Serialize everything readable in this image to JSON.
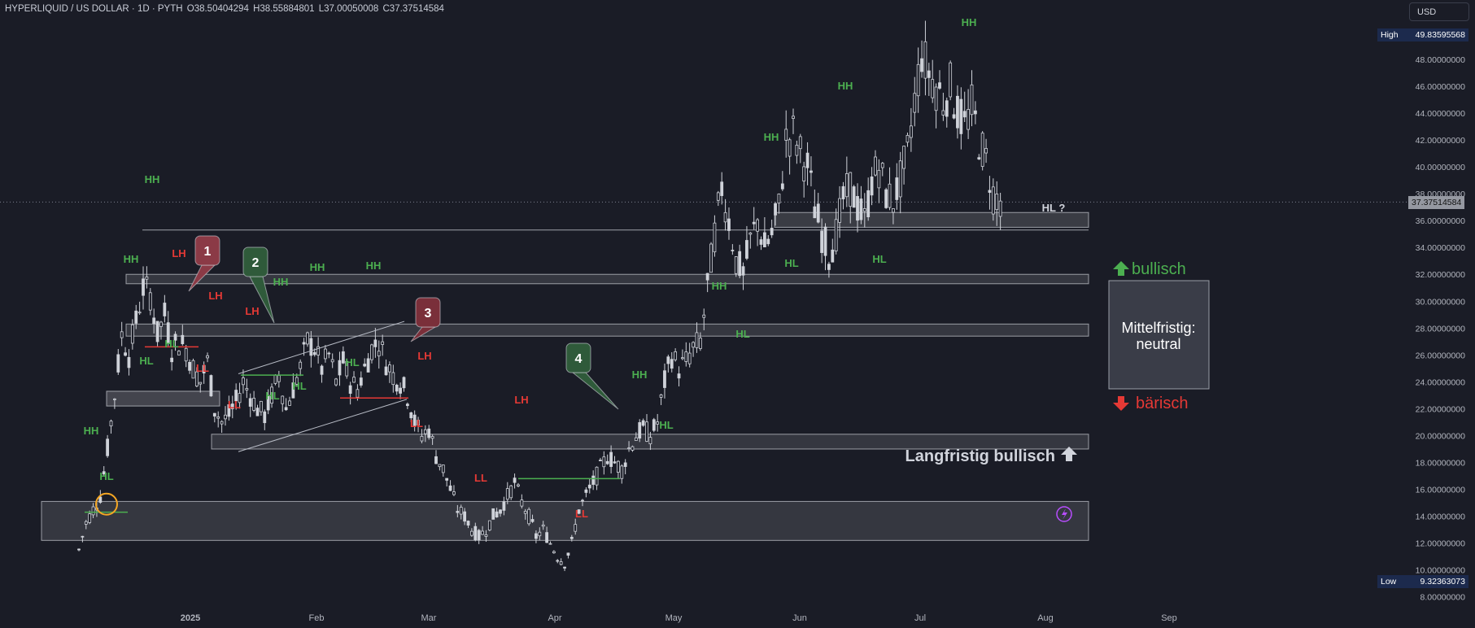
{
  "header": {
    "symbol": "HYPERLIQUID / US DOLLAR · 1D · PYTH",
    "open": "O38.50404294",
    "high": "H38.55884801",
    "low": "L37.00050008",
    "close": "C37.37514584"
  },
  "currency": "USD",
  "price_scale": {
    "high_label": "High",
    "high_value": "49.83595568",
    "last_value": "37.37514584",
    "low_label": "Low",
    "low_value": "9.32363073"
  },
  "colors": {
    "background": "#1a1c26",
    "candle": "#cfd2d9",
    "bullish": "#4caf50",
    "bearish": "#e53935",
    "zone_fill": "#ffffff",
    "last_price_tag": "#9598a1",
    "high_low_tag": "#1c2a4d",
    "marker_circle": "#f5a623",
    "lightning": "#b84dff"
  },
  "texts": {
    "langfristig": "Langfristig bullisch",
    "mittelfristig_line1": "Mittelfristig:",
    "mittelfristig_line2": "neutral",
    "bullisch": "bullisch",
    "baerisch": "bärisch"
  },
  "chart_data": {
    "type": "candlestick",
    "interval": "1D",
    "ylim": [
      8,
      50
    ],
    "y_ticks": [
      "8.00000000",
      "10.00000000",
      "12.00000000",
      "14.00000000",
      "16.00000000",
      "18.00000000",
      "20.00000000",
      "22.00000000",
      "24.00000000",
      "26.00000000",
      "28.00000000",
      "30.00000000",
      "32.00000000",
      "34.00000000",
      "36.00000000",
      "38.00000000",
      "40.00000000",
      "42.00000000",
      "44.00000000",
      "46.00000000",
      "48.00000000"
    ],
    "x_ticks": [
      "2025",
      "Feb",
      "Mar",
      "Apr",
      "May",
      "Jun",
      "Jul",
      "Aug",
      "Sep"
    ],
    "series_close": [
      [
        0,
        11.5
      ],
      [
        2,
        13.5
      ],
      [
        4,
        14.5
      ],
      [
        6,
        15.5
      ],
      [
        8,
        19
      ],
      [
        10,
        23
      ],
      [
        12,
        27.5
      ],
      [
        14,
        26
      ],
      [
        16,
        28.5
      ],
      [
        18,
        31
      ],
      [
        20,
        30.5
      ],
      [
        22,
        27.5
      ],
      [
        24,
        29
      ],
      [
        26,
        26.5
      ],
      [
        28,
        27
      ],
      [
        30,
        26.5
      ],
      [
        32,
        25
      ],
      [
        34,
        24
      ],
      [
        36,
        25.5
      ],
      [
        38,
        22
      ],
      [
        40,
        21
      ],
      [
        42,
        21.5
      ],
      [
        44,
        22.5
      ],
      [
        46,
        24
      ],
      [
        48,
        23
      ],
      [
        50,
        22
      ],
      [
        52,
        21.5
      ],
      [
        54,
        23
      ],
      [
        56,
        24.5
      ],
      [
        58,
        22
      ],
      [
        60,
        23.5
      ],
      [
        62,
        25
      ],
      [
        64,
        27
      ],
      [
        66,
        26.5
      ],
      [
        68,
        25
      ],
      [
        70,
        26
      ],
      [
        72,
        24
      ],
      [
        74,
        25.5
      ],
      [
        76,
        24
      ],
      [
        78,
        23.5
      ],
      [
        80,
        25
      ],
      [
        82,
        26.5
      ],
      [
        84,
        27
      ],
      [
        86,
        25.5
      ],
      [
        88,
        24.5
      ],
      [
        90,
        24
      ],
      [
        92,
        23
      ],
      [
        94,
        21
      ],
      [
        96,
        20
      ],
      [
        98,
        20.5
      ],
      [
        100,
        18.5
      ],
      [
        102,
        17.5
      ],
      [
        104,
        16
      ],
      [
        106,
        14.5
      ],
      [
        108,
        14
      ],
      [
        110,
        13
      ],
      [
        112,
        12.5
      ],
      [
        114,
        13
      ],
      [
        116,
        14
      ],
      [
        118,
        14.5
      ],
      [
        120,
        15.5
      ],
      [
        122,
        16.5
      ],
      [
        124,
        15
      ],
      [
        126,
        14
      ],
      [
        128,
        12.5
      ],
      [
        130,
        13
      ],
      [
        132,
        12
      ],
      [
        134,
        11
      ],
      [
        136,
        10.5
      ],
      [
        138,
        12
      ],
      [
        140,
        14.5
      ],
      [
        142,
        15.5
      ],
      [
        144,
        16.5
      ],
      [
        146,
        17.5
      ],
      [
        148,
        18.5
      ],
      [
        150,
        18
      ],
      [
        152,
        17.5
      ],
      [
        154,
        19
      ],
      [
        156,
        20
      ],
      [
        158,
        20.5
      ],
      [
        160,
        20
      ],
      [
        162,
        21
      ],
      [
        164,
        24
      ],
      [
        166,
        26
      ],
      [
        168,
        25
      ],
      [
        170,
        25.5
      ],
      [
        172,
        26.5
      ],
      [
        174,
        27
      ],
      [
        176,
        31
      ],
      [
        178,
        35
      ],
      [
        180,
        38.5
      ],
      [
        182,
        36
      ],
      [
        184,
        33
      ],
      [
        186,
        32
      ],
      [
        188,
        34.5
      ],
      [
        190,
        36
      ],
      [
        192,
        34
      ],
      [
        194,
        35
      ],
      [
        196,
        37
      ],
      [
        198,
        42
      ],
      [
        200,
        42.5
      ],
      [
        202,
        41
      ],
      [
        204,
        40
      ],
      [
        206,
        37
      ],
      [
        208,
        35
      ],
      [
        210,
        33.5
      ],
      [
        212,
        35
      ],
      [
        214,
        37.5
      ],
      [
        216,
        38.5
      ],
      [
        218,
        37
      ],
      [
        220,
        36
      ],
      [
        222,
        39
      ],
      [
        224,
        40
      ],
      [
        226,
        38
      ],
      [
        228,
        37.5
      ],
      [
        230,
        39
      ],
      [
        232,
        41
      ],
      [
        234,
        45
      ],
      [
        236,
        48.5
      ],
      [
        238,
        47
      ],
      [
        240,
        46
      ],
      [
        242,
        45
      ],
      [
        244,
        46
      ],
      [
        246,
        44
      ],
      [
        248,
        43
      ],
      [
        250,
        44.5
      ],
      [
        252,
        42
      ],
      [
        254,
        40.5
      ],
      [
        256,
        38
      ],
      [
        258,
        37.5
      ]
    ],
    "annotations": [
      {
        "label": "HH",
        "color": "bullish"
      },
      {
        "label": "HL",
        "color": "bullish"
      },
      {
        "label": "LH",
        "color": "bearish"
      },
      {
        "label": "LL",
        "color": "bearish"
      },
      {
        "label": "HL ?",
        "color": "neutral"
      }
    ],
    "callouts": [
      "1",
      "2",
      "3",
      "4"
    ]
  }
}
